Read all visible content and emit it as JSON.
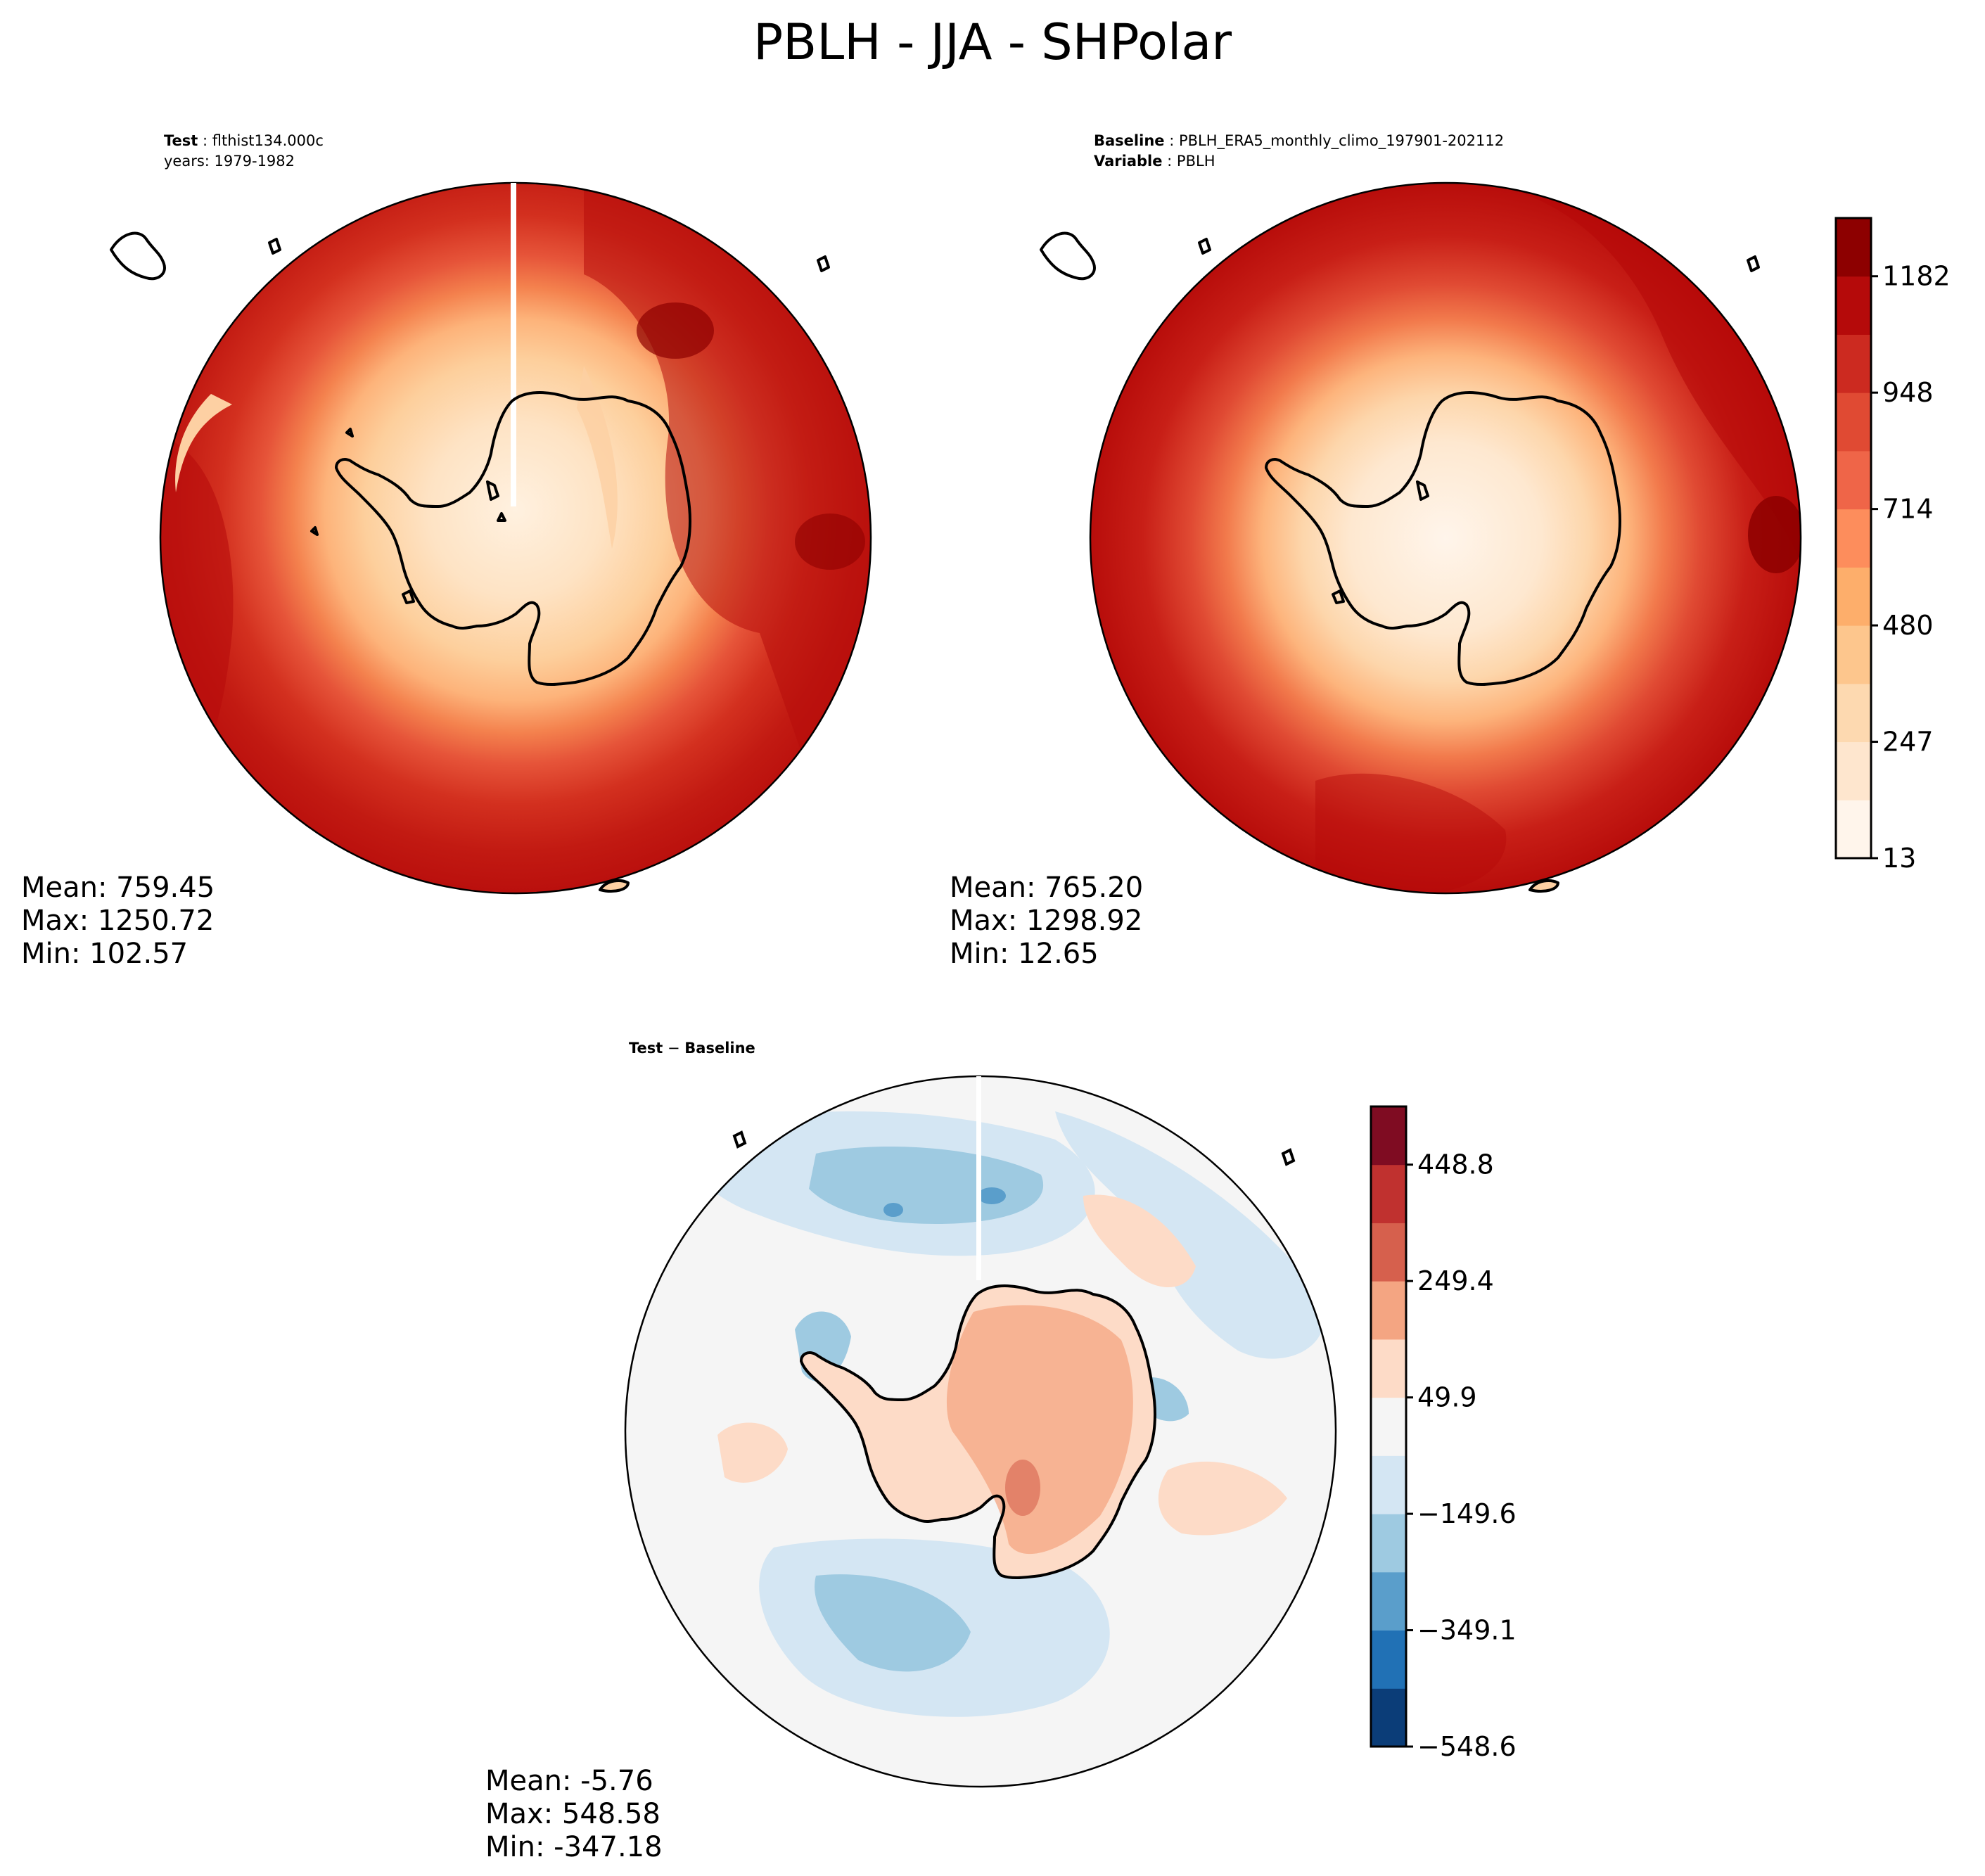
{
  "figure": {
    "title": "PBLH - JJA - SHPolar"
  },
  "panels": {
    "test": {
      "case_label": "Test",
      "case_name": "flthist134.000c",
      "years": "years: 1979-1982",
      "stats": {
        "mean": "Mean: 759.45",
        "max": "Max: 1250.72",
        "min": "Min: 102.57"
      }
    },
    "baseline": {
      "case_label": "Baseline",
      "case_name": "PBLH_ERA5_monthly_climo_197901-202112",
      "variable_label": "Variable",
      "variable_name": "PBLH",
      "stats": {
        "mean": "Mean: 765.20",
        "max": "Max: 1298.92",
        "min": "Min: 12.65"
      }
    },
    "diff": {
      "title_a": "Test",
      "title_sep": " − ",
      "title_b": "Baseline",
      "stats": {
        "mean": "Mean: -5.76",
        "max": "Max: 548.58",
        "min": "Min: -347.18"
      }
    }
  },
  "colorbars": {
    "main": {
      "colors": [
        "#fff5eb",
        "#fee6ce",
        "#fdd9b0",
        "#fdc68d",
        "#fdae6b",
        "#fd8d5c",
        "#ef6548",
        "#e04a33",
        "#cc2a20",
        "#b50a0a",
        "#8d0000"
      ],
      "ticks": [
        "13",
        "247",
        "480",
        "714",
        "948",
        "1182"
      ]
    },
    "diff": {
      "colors": [
        "#0b3d78",
        "#2171b5",
        "#5a9ecb",
        "#9ecae1",
        "#d4e6f3",
        "#f5f5f5",
        "#fddbc7",
        "#f4a582",
        "#d6604d",
        "#c0312f",
        "#7f0c22"
      ],
      "ticks": [
        "−548.6",
        "−349.1",
        "−149.6",
        "49.9",
        "249.4",
        "448.8"
      ]
    }
  },
  "chart_data": [
    {
      "type": "heatmap",
      "panel": "test",
      "variable": "PBLH",
      "region": "SHPolar",
      "season": "JJA",
      "case": "flthist134.000c",
      "years": "1979-1982",
      "colorbar_ticks": [
        13,
        247,
        480,
        714,
        948,
        1182
      ],
      "vrange": [
        13,
        1298.92
      ],
      "stats": {
        "mean": 759.45,
        "max": 1250.72,
        "min": 102.57
      }
    },
    {
      "type": "heatmap",
      "panel": "baseline",
      "variable": "PBLH",
      "region": "SHPolar",
      "season": "JJA",
      "case": "PBLH_ERA5_monthly_climo_197901-202112",
      "colorbar_ticks": [
        13,
        247,
        480,
        714,
        948,
        1182
      ],
      "vrange": [
        13,
        1298.92
      ],
      "stats": {
        "mean": 765.2,
        "max": 1298.92,
        "min": 12.65
      }
    },
    {
      "type": "heatmap",
      "panel": "diff",
      "variable": "PBLH",
      "region": "SHPolar",
      "season": "JJA",
      "colorbar_ticks": [
        -548.6,
        -349.1,
        -149.6,
        49.9,
        249.4,
        448.8
      ],
      "vrange": [
        -548.6,
        548.6
      ],
      "stats": {
        "mean": -5.76,
        "max": 548.58,
        "min": -347.18
      }
    }
  ]
}
